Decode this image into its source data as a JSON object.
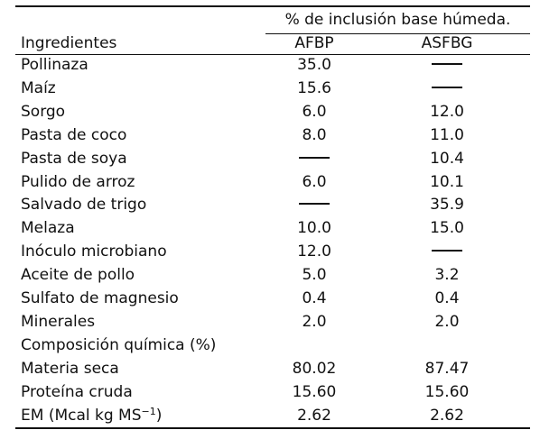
{
  "table": {
    "span_header": "% de inclusión base húmeda.",
    "col_ingredients": "Ingredientes",
    "col_afbp": "AFBP",
    "col_asfbg": "ASFBG",
    "rows": [
      {
        "label": "Pollinaza",
        "afbp": "35.0",
        "asfbg": "—"
      },
      {
        "label": "Maíz",
        "afbp": "15.6",
        "asfbg": "—"
      },
      {
        "label": "Sorgo",
        "afbp": "6.0",
        "asfbg": "12.0"
      },
      {
        "label": "Pasta de coco",
        "afbp": "8.0",
        "asfbg": "11.0"
      },
      {
        "label": "Pasta de soya",
        "afbp": "—",
        "asfbg": "10.4"
      },
      {
        "label": "Pulido de arroz",
        "afbp": "6.0",
        "asfbg": "10.1"
      },
      {
        "label": "Salvado de trigo",
        "afbp": "—",
        "asfbg": "35.9"
      },
      {
        "label": "Melaza",
        "afbp": "10.0",
        "asfbg": "15.0"
      },
      {
        "label": "Inóculo microbiano",
        "afbp": "12.0",
        "asfbg": "—"
      },
      {
        "label": "Aceite de pollo",
        "afbp": "5.0",
        "asfbg": "3.2"
      },
      {
        "label": "Sulfato de magnesio",
        "afbp": "0.4",
        "asfbg": "0.4"
      },
      {
        "label": "Minerales",
        "afbp": "2.0",
        "asfbg": "2.0"
      },
      {
        "label": "Composición química (%)",
        "afbp": "",
        "asfbg": ""
      },
      {
        "label": "Materia seca",
        "afbp": "80.02",
        "asfbg": "87.47"
      },
      {
        "label": "Proteína cruda",
        "afbp": "15.60",
        "asfbg": "15.60"
      }
    ],
    "em_row": {
      "label_prefix": "EM (Mcal kg MS",
      "label_exponent": "−1",
      "label_suffix": ")",
      "afbp": "2.62",
      "asfbg": "2.62"
    }
  }
}
